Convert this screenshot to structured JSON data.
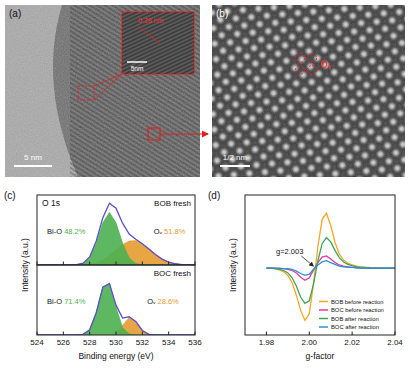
{
  "images": [
    {
      "label": "(a)",
      "scale_bar": "5 nm",
      "inset_scale_bar": "5nm",
      "inset_text": "0.28 nm"
    },
    {
      "label": "(b)",
      "scale_bar": "1/2 nm",
      "annotation": "Oᵥ"
    }
  ],
  "chart_data": [
    {
      "type": "area",
      "panel_label": "(c)",
      "title": "O 1s",
      "y_label": "Intensity (a.u.)",
      "annotations": [
        "BOB fresh"
      ],
      "x": [
        524,
        524.5,
        525,
        525.5,
        526,
        526.5,
        527,
        527.5,
        528,
        528.5,
        529,
        529.5,
        530,
        530.5,
        531,
        531.5,
        532,
        532.5,
        533,
        533.5,
        534,
        534.5,
        535,
        535.5,
        536
      ],
      "series": [
        {
          "name": "Bi-O",
          "share_label": "48.2%",
          "color": "#4cb050",
          "type": "area",
          "values": [
            0,
            0,
            0,
            0,
            0,
            0,
            0.2,
            1.7,
            8.1,
            24.6,
            48,
            60,
            48,
            24.6,
            8.1,
            1.7,
            0.2,
            0,
            0,
            0,
            0,
            0,
            0,
            0,
            0
          ]
        },
        {
          "name": "Oᵥ",
          "share_label": "51.8%",
          "color": "#e59b30",
          "type": "area",
          "values": [
            0,
            0,
            0,
            0,
            0,
            0,
            0.1,
            0.4,
            1.1,
            2.8,
            5.9,
            10.7,
            17,
            23.2,
            27.3,
            27.7,
            24.2,
            18.3,
            11.9,
            6.7,
            3.2,
            1.4,
            0.5,
            0.1,
            0
          ]
        },
        {
          "color": "#5a4fcf",
          "type": "line",
          "values": [
            0,
            0,
            0,
            0,
            0,
            0,
            0.3,
            2.1,
            9.2,
            27.4,
            53.9,
            70.7,
            65,
            47.8,
            35.4,
            29.4,
            24.4,
            18.3,
            11.9,
            6.7,
            3.2,
            1.4,
            0.5,
            0.1,
            0
          ]
        }
      ],
      "xlim": [
        524,
        536
      ],
      "ylim": [
        0,
        80
      ],
      "xticks": [
        524,
        526,
        528,
        530,
        532,
        534,
        536
      ],
      "tick_labels": false
    },
    {
      "type": "area",
      "x_label": "Binding energy (eV)",
      "annotations": [
        "BOC fresh"
      ],
      "x": [
        524,
        524.5,
        525,
        525.5,
        526,
        526.5,
        527,
        527.5,
        528,
        528.5,
        529,
        529.5,
        530,
        530.5,
        531,
        531.5,
        532,
        532.5,
        533,
        533.5,
        534,
        534.5,
        535,
        535.5,
        536
      ],
      "series": [
        {
          "name": "Bi-O",
          "share_label": "71.4%",
          "color": "#4cb050",
          "type": "area",
          "values": [
            0,
            0,
            0,
            0,
            0,
            0,
            0,
            0.7,
            5.9,
            25.5,
            54.7,
            58.7,
            31.4,
            8.4,
            1.1,
            0.1,
            0,
            0,
            0,
            0,
            0,
            0,
            0,
            0,
            0
          ]
        },
        {
          "name": "Oᵥ",
          "share_label": "28.6%",
          "color": "#e59b30",
          "type": "area",
          "values": [
            0,
            0,
            0,
            0,
            0,
            0,
            0,
            0,
            0,
            0,
            0,
            0.3,
            2.7,
            11,
            19.7,
            15.4,
            5.2,
            0.8,
            0.1,
            0,
            0,
            0,
            0,
            0,
            0
          ]
        },
        {
          "color": "#5a4fcf",
          "type": "line",
          "values": [
            0,
            0,
            0,
            0,
            0,
            0,
            0,
            0.7,
            5.9,
            25.5,
            54.7,
            59,
            34.1,
            19.4,
            20.8,
            15.5,
            5.2,
            0.8,
            0.1,
            0,
            0,
            0,
            0,
            0,
            0
          ]
        }
      ],
      "xlim": [
        524,
        536
      ],
      "ylim": [
        0,
        80
      ],
      "xticks": [
        524,
        526,
        528,
        530,
        532,
        534,
        536
      ],
      "tick_labels": "x"
    },
    {
      "type": "line",
      "panel_label": "(d)",
      "x_label": "g-factor",
      "y_label": "Intensity (a.u.)",
      "annotations": [
        "g=2.003"
      ],
      "x": [
        1.98,
        1.982,
        1.984,
        1.986,
        1.988,
        1.99,
        1.992,
        1.994,
        1.996,
        1.998,
        2,
        2.002,
        2.004,
        2.006,
        2.008,
        2.01,
        2.012,
        2.014,
        2.016,
        2.018,
        2.02,
        2.022,
        2.024,
        2.026,
        2.028,
        2.03,
        2.032,
        2.034,
        2.036,
        2.038,
        2.04
      ],
      "series": [
        {
          "name": "BOB before reaction",
          "color": "#f5a623",
          "values": [
            0,
            0,
            -0.1,
            -0.3,
            -0.6,
            -1.2,
            -2.4,
            -4.5,
            -7,
            -8.6,
            -7.5,
            -2.5,
            3.5,
            8,
            9,
            7,
            4.2,
            2.3,
            1.3,
            0.8,
            0.5,
            0.3,
            0.2,
            0.1,
            0.1,
            0,
            0,
            0,
            0,
            0,
            0
          ]
        },
        {
          "name": "BOC before reaction",
          "color": "#e6399b",
          "values": [
            0,
            0,
            0,
            -0.1,
            -0.1,
            -0.2,
            -0.4,
            -0.8,
            -1.5,
            -2,
            -1.6,
            -0.3,
            0.9,
            1.8,
            2,
            1.5,
            0.9,
            0.5,
            0.3,
            0.2,
            0.1,
            0.1,
            0,
            0,
            0,
            0,
            0,
            0,
            0,
            0,
            0
          ]
        },
        {
          "name": "BOB after reaction",
          "color": "#3aa655",
          "values": [
            0,
            0,
            -0.1,
            -0.2,
            -0.4,
            -0.8,
            -1.6,
            -3,
            -4.8,
            -5.8,
            -5.4,
            -2.6,
            1.2,
            4,
            5,
            4.3,
            2.9,
            1.7,
            1,
            0.6,
            0.4,
            0.2,
            0.1,
            0.1,
            0,
            0,
            0,
            0,
            0,
            0,
            0
          ]
        },
        {
          "name": "BOC after reaction",
          "color": "#2f8fd6",
          "values": [
            0,
            0,
            0,
            0,
            -0.1,
            -0.1,
            -0.2,
            -0.5,
            -0.9,
            -1.2,
            -1,
            -0.2,
            0.5,
            1,
            1.2,
            0.9,
            0.6,
            0.3,
            0.2,
            0.1,
            0.1,
            0,
            0,
            0,
            0,
            0,
            0,
            0,
            0,
            0,
            0
          ]
        }
      ],
      "xlim": [
        1.97,
        2.04
      ],
      "ylim": [
        -11,
        12
      ],
      "xticks": [
        1.98,
        {
          "value": 2,
          "label": "2.00"
        },
        2.02,
        2.04
      ],
      "tick_labels": "x",
      "legend": "bottom-right"
    }
  ]
}
